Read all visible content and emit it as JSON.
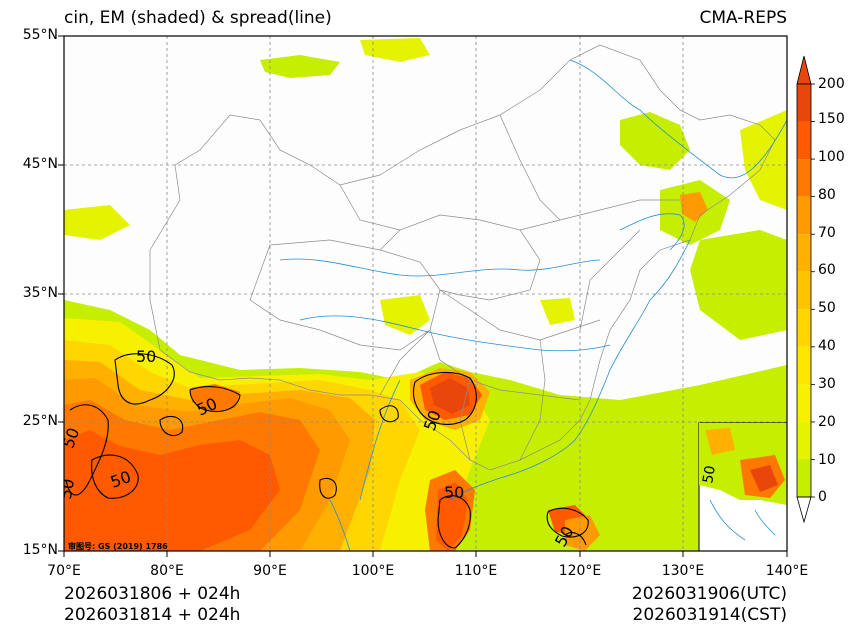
{
  "header": {
    "title": "cin, EM (shaded) & spread(line)",
    "model": "CMA-REPS"
  },
  "axes": {
    "lat_labels": [
      "55°N",
      "45°N",
      "35°N",
      "25°N",
      "15°N"
    ],
    "lon_labels": [
      "70°E",
      "80°E",
      "90°E",
      "100°E",
      "110°E",
      "120°E",
      "130°E",
      "140°E"
    ]
  },
  "colorbar": {
    "levels": [
      "200",
      "150",
      "100",
      "80",
      "70",
      "60",
      "50",
      "40",
      "30",
      "20",
      "10",
      "0"
    ],
    "colors": [
      "#e8460a",
      "#ff5a00",
      "#ff7800",
      "#ff9a00",
      "#ffb000",
      "#ffc400",
      "#ffd600",
      "#ffe600",
      "#f7f000",
      "#e4f400",
      "#c6ee00"
    ]
  },
  "map": {
    "contour_value_label": "50",
    "map_credit": "审图号: GS (2019) 1786"
  },
  "footer": {
    "init_1": "2026031806  +  024h",
    "init_2": "2026031814  +  024h",
    "valid_utc": "2026031906(UTC)",
    "valid_cst": "2026031914(CST)"
  }
}
